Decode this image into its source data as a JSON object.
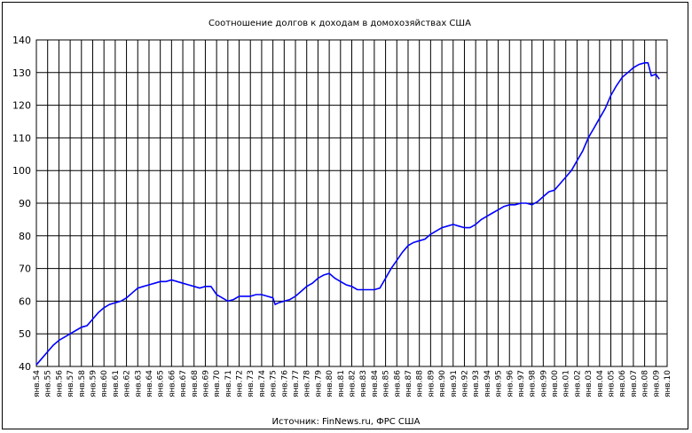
{
  "chart_data": {
    "type": "line",
    "title": "Соотношение долгов к доходам в домохозяйствах США",
    "source": "Источник: FinNews.ru, ФРС США",
    "xlabel": "",
    "ylabel": "",
    "ylim": [
      40,
      140
    ],
    "yticks": [
      40,
      50,
      60,
      70,
      80,
      90,
      100,
      110,
      120,
      130,
      140
    ],
    "grid": true,
    "legend": "none",
    "line_color": "#0000ff",
    "x_categories": [
      "янв.54",
      "янв.55",
      "янв.56",
      "янв.57",
      "янв.58",
      "янв.59",
      "янв.60",
      "янв.61",
      "янв.62",
      "янв.63",
      "янв.64",
      "янв.65",
      "янв.66",
      "янв.67",
      "янв.68",
      "янв.69",
      "янв.70",
      "янв.71",
      "янв.72",
      "янв.73",
      "янв.74",
      "янв.75",
      "янв.76",
      "янв.77",
      "янв.78",
      "янв.79",
      "янв.80",
      "янв.81",
      "янв.82",
      "янв.83",
      "янв.84",
      "янв.85",
      "янв.86",
      "янв.87",
      "янв.88",
      "янв.89",
      "янв.90",
      "янв.91",
      "янв.92",
      "янв.93",
      "янв.94",
      "янв.95",
      "янв.96",
      "янв.97",
      "янв.98",
      "янв.99",
      "янв.00",
      "янв.01",
      "янв.02",
      "янв.03",
      "янв.04",
      "янв.05",
      "янв.06",
      "янв.07",
      "янв.08",
      "янв.09",
      "янв.10"
    ],
    "series": [
      {
        "x": [
          1954,
          1954.5,
          1955,
          1955.5,
          1956,
          1956.5,
          1957,
          1957.5,
          1958,
          1958.5,
          1959,
          1959.5,
          1960,
          1960.5,
          1961,
          1961.5,
          1962,
          1962.5,
          1963,
          1963.5,
          1964,
          1964.5,
          1965,
          1965.5,
          1966,
          1966.5,
          1967,
          1967.5,
          1968,
          1968.5,
          1969,
          1969.5,
          1970,
          1970.5,
          1971,
          1971.5,
          1972,
          1972.5,
          1973,
          1973.5,
          1974,
          1974.5,
          1975,
          1975.2,
          1975.5,
          1976,
          1976.5,
          1977,
          1977.5,
          1978,
          1978.5,
          1979,
          1979.5,
          1980,
          1980.5,
          1981,
          1981.5,
          1982,
          1982.5,
          1983,
          1983.5,
          1984,
          1984.5,
          1985,
          1985.5,
          1986,
          1986.5,
          1987,
          1987.5,
          1988,
          1988.5,
          1989,
          1989.5,
          1990,
          1990.5,
          1991,
          1991.5,
          1992,
          1992.5,
          1993,
          1993.5,
          1994,
          1994.5,
          1995,
          1995.5,
          1996,
          1996.5,
          1997,
          1997.5,
          1998,
          1998.5,
          1999,
          1999.5,
          2000,
          2000.5,
          2001,
          2001.5,
          2002,
          2002.5,
          2003,
          2003.5,
          2004,
          2004.5,
          2005,
          2005.5,
          2006,
          2006.5,
          2007,
          2007.5,
          2008,
          2008.3,
          2008.6,
          2009,
          2009.3
        ],
        "values": [
          40.5,
          42.5,
          44.5,
          46.5,
          48,
          49,
          50,
          51,
          52,
          52.5,
          54.5,
          56.5,
          58,
          59,
          59.5,
          60,
          61,
          62.5,
          64,
          64.5,
          65,
          65.5,
          66,
          66,
          66.5,
          66,
          65.5,
          65,
          64.5,
          64,
          64.5,
          64.5,
          62,
          61,
          60,
          60.5,
          61.5,
          61.5,
          61.5,
          62,
          62,
          61.5,
          61,
          59,
          59.5,
          60,
          60.5,
          61.5,
          63,
          64.5,
          65.5,
          67,
          68,
          68.5,
          67,
          66,
          65,
          64.5,
          63.5,
          63.5,
          63.5,
          63.5,
          64,
          67,
          70,
          72.5,
          75,
          77,
          78,
          78.5,
          79,
          80.5,
          81.5,
          82.5,
          83,
          83.5,
          83,
          82.5,
          82.5,
          83.5,
          85,
          86,
          87,
          88,
          89,
          89.5,
          89.5,
          90,
          90,
          89.5,
          90.5,
          92,
          93.5,
          94,
          96,
          98,
          100,
          103,
          106,
          110,
          113,
          116,
          119,
          123,
          126,
          128.5,
          130,
          131.5,
          132.5,
          133,
          133,
          129,
          129.5,
          128
        ]
      }
    ]
  }
}
